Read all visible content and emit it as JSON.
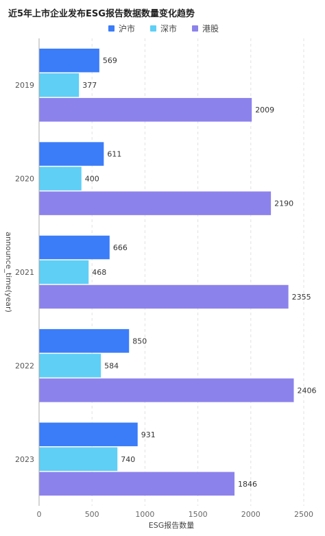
{
  "chart_data": {
    "type": "bar",
    "orientation": "horizontal",
    "title": "近5年上市企业发布ESG报告数据数量变化趋势",
    "xlabel": "ESG报告数量",
    "ylabel": "announce_time(year)",
    "categories": [
      "2019",
      "2020",
      "2021",
      "2022",
      "2023"
    ],
    "series": [
      {
        "name": "沪市",
        "color": "#3b7cf8",
        "values": [
          569,
          611,
          666,
          850,
          931
        ]
      },
      {
        "name": "深市",
        "color": "#5fcff5",
        "values": [
          377,
          400,
          468,
          584,
          740
        ]
      },
      {
        "name": "港股",
        "color": "#8c82eb",
        "values": [
          2009,
          2190,
          2355,
          2406,
          1846
        ]
      }
    ],
    "xlim": [
      0,
      2500
    ],
    "xticks": [
      0,
      500,
      1000,
      1500,
      2000,
      2500
    ],
    "legend_position": "top-center",
    "grid": "vertical-dashed"
  }
}
